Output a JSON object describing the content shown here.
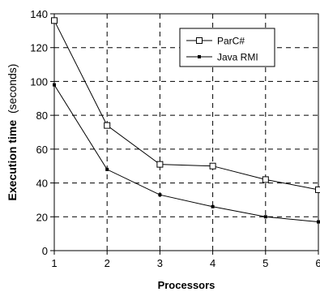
{
  "chart_data": {
    "type": "line",
    "x": [
      1,
      2,
      3,
      4,
      5,
      6
    ],
    "series": [
      {
        "name": "ParC#",
        "values": [
          136,
          74,
          51,
          50,
          42,
          36
        ],
        "marker": "open-square",
        "color": "#000000"
      },
      {
        "name": "Java RMI",
        "values": [
          98,
          48,
          33,
          26,
          20,
          17
        ],
        "marker": "small-filled-square",
        "color": "#000000"
      }
    ],
    "xlabel": "Processors",
    "ylabel_main": "Execution time",
    "ylabel_unit": "(seconds)",
    "xlim": [
      1,
      6
    ],
    "ylim": [
      0,
      140
    ],
    "xticks": [
      1,
      2,
      3,
      4,
      5,
      6
    ],
    "yticks": [
      0,
      20,
      40,
      60,
      80,
      100,
      120,
      140
    ],
    "grid": true,
    "grid_style": "dashed",
    "legend_position": "top-right"
  }
}
